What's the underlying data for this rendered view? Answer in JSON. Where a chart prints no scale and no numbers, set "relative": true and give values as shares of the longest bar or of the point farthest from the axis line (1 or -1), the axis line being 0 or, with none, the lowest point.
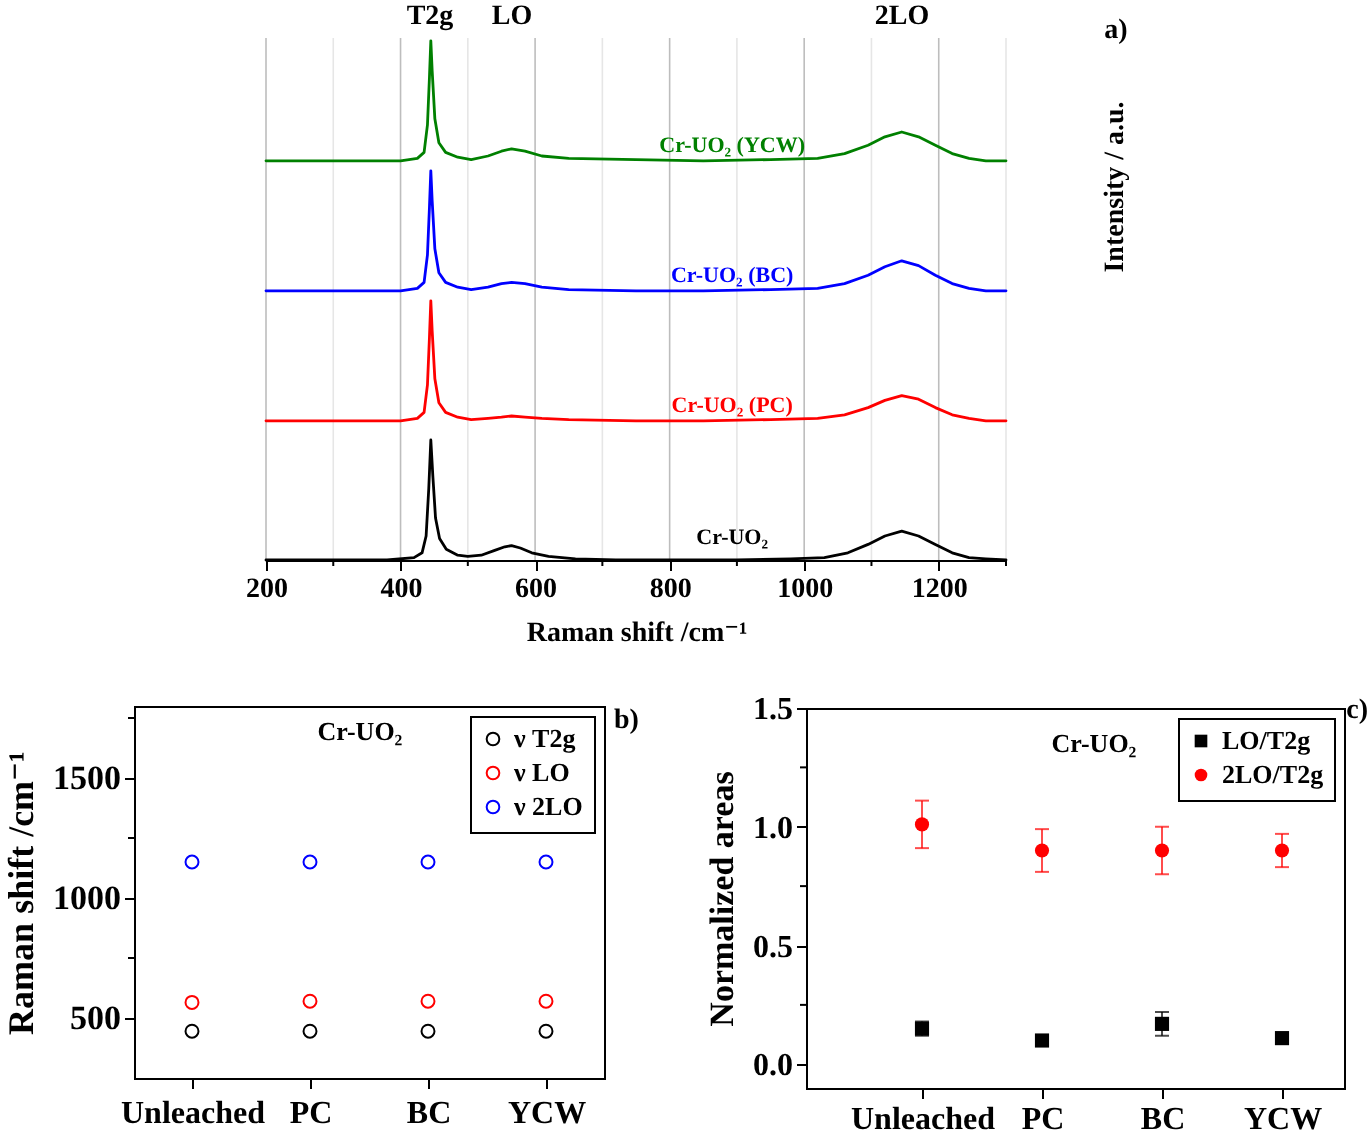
{
  "chart_data": [
    {
      "type": "line",
      "relative": true,
      "ylabel": "Intensity / a.u.",
      "xlim": [
        200,
        1300
      ],
      "xticks": [
        200,
        {
          "value": 300,
          "label": null
        },
        400,
        {
          "value": 500,
          "label": null
        },
        600,
        {
          "value": 700,
          "label": null
        },
        800,
        {
          "value": 900,
          "label": null
        },
        1000,
        {
          "value": 1100,
          "label": null
        },
        1200,
        {
          "value": 1300,
          "label": null
        }
      ],
      "grid": "x",
      "tick_labels": false,
      "annotations": [
        "T2g",
        "LO",
        "2LO",
        "a)"
      ],
      "series": [
        {
          "name": "Cr-UO₂ (YCW)",
          "color": "#008000",
          "x": [
            200,
            300,
            400,
            425,
            435,
            440,
            443,
            445,
            447,
            451,
            457,
            467,
            485,
            505,
            530,
            550,
            565,
            585,
            610,
            650,
            750,
            850,
            950,
            1020,
            1060,
            1095,
            1120,
            1145,
            1170,
            1195,
            1220,
            1245,
            1270,
            1300
          ],
          "values": [
            0,
            0,
            0,
            0.02,
            0.07,
            0.3,
            0.7,
            1,
            0.75,
            0.35,
            0.15,
            0.07,
            0.03,
            0.01,
            0.04,
            0.08,
            0.1,
            0.08,
            0.04,
            0.02,
            0.01,
            0,
            0.01,
            0.02,
            0.06,
            0.13,
            0.2,
            0.24,
            0.2,
            0.13,
            0.06,
            0.02,
            0,
            0
          ]
        }
      ]
    },
    {
      "type": "line",
      "relative": true,
      "xlim": [
        200,
        1300
      ],
      "xticks": [
        200,
        {
          "value": 300,
          "label": null
        },
        400,
        {
          "value": 500,
          "label": null
        },
        600,
        {
          "value": 700,
          "label": null
        },
        800,
        {
          "value": 900,
          "label": null
        },
        1000,
        {
          "value": 1100,
          "label": null
        },
        1200,
        {
          "value": 1300,
          "label": null
        }
      ],
      "grid": "x",
      "tick_labels": false,
      "series": [
        {
          "name": "Cr-UO₂ (BC)",
          "color": "#0000ff",
          "x": [
            200,
            300,
            400,
            425,
            435,
            440,
            443,
            445,
            447,
            451,
            457,
            467,
            485,
            505,
            530,
            550,
            565,
            585,
            610,
            650,
            750,
            850,
            950,
            1020,
            1060,
            1095,
            1120,
            1145,
            1170,
            1195,
            1220,
            1245,
            1270,
            1300
          ],
          "values": [
            0,
            0,
            0,
            0.02,
            0.07,
            0.3,
            0.7,
            1,
            0.75,
            0.35,
            0.15,
            0.07,
            0.03,
            0.01,
            0.03,
            0.06,
            0.07,
            0.06,
            0.03,
            0.01,
            0,
            0,
            0.01,
            0.02,
            0.06,
            0.13,
            0.2,
            0.25,
            0.21,
            0.13,
            0.06,
            0.02,
            0,
            0
          ]
        }
      ]
    },
    {
      "type": "line",
      "relative": true,
      "xlim": [
        200,
        1300
      ],
      "xticks": [
        200,
        {
          "value": 300,
          "label": null
        },
        400,
        {
          "value": 500,
          "label": null
        },
        600,
        {
          "value": 700,
          "label": null
        },
        800,
        {
          "value": 900,
          "label": null
        },
        1000,
        {
          "value": 1100,
          "label": null
        },
        1200,
        {
          "value": 1300,
          "label": null
        }
      ],
      "grid": "x",
      "tick_labels": false,
      "series": [
        {
          "name": "Cr-UO₂ (PC)",
          "color": "#ff0000",
          "x": [
            200,
            300,
            400,
            425,
            435,
            440,
            443,
            445,
            447,
            451,
            457,
            467,
            485,
            505,
            530,
            550,
            565,
            585,
            610,
            650,
            750,
            850,
            950,
            1020,
            1060,
            1095,
            1120,
            1145,
            1170,
            1195,
            1220,
            1245,
            1270,
            1300
          ],
          "values": [
            0,
            0,
            0,
            0.02,
            0.07,
            0.3,
            0.7,
            1,
            0.75,
            0.35,
            0.15,
            0.07,
            0.03,
            0.01,
            0.02,
            0.03,
            0.04,
            0.03,
            0.02,
            0.01,
            0,
            0,
            0.01,
            0.02,
            0.05,
            0.11,
            0.17,
            0.21,
            0.18,
            0.11,
            0.05,
            0.02,
            0,
            0
          ]
        }
      ]
    },
    {
      "type": "line",
      "relative": true,
      "xlabel": "Raman shift /cm⁻¹",
      "xlim": [
        200,
        1300
      ],
      "xticks": [
        200,
        {
          "value": 300,
          "label": null
        },
        400,
        {
          "value": 500,
          "label": null
        },
        600,
        {
          "value": 700,
          "label": null
        },
        800,
        {
          "value": 900,
          "label": null
        },
        1000,
        {
          "value": 1100,
          "label": null
        },
        1200,
        {
          "value": 1300,
          "label": null
        }
      ],
      "grid": "x",
      "tick_labels": "x",
      "series": [
        {
          "name": "Cr-UO₂",
          "color": "#000000",
          "x": [
            200,
            300,
            380,
            420,
            432,
            438,
            442,
            445,
            448,
            452,
            458,
            468,
            485,
            500,
            520,
            540,
            555,
            565,
            578,
            595,
            620,
            660,
            720,
            800,
            900,
            980,
            1030,
            1065,
            1095,
            1120,
            1145,
            1170,
            1195,
            1220,
            1245,
            1270,
            1300
          ],
          "values": [
            0,
            0,
            0,
            0.02,
            0.06,
            0.2,
            0.6,
            1,
            0.7,
            0.35,
            0.18,
            0.09,
            0.04,
            0.03,
            0.04,
            0.08,
            0.11,
            0.12,
            0.1,
            0.06,
            0.03,
            0.01,
            0,
            0,
            0,
            0.01,
            0.02,
            0.06,
            0.13,
            0.2,
            0.24,
            0.2,
            0.13,
            0.06,
            0.02,
            0.01,
            0
          ]
        }
      ]
    },
    {
      "type": "scatter",
      "categories": [
        "Unleached",
        "PC",
        "BC",
        "YCW"
      ],
      "ylabel": "Raman shift /cm⁻¹",
      "ylim": [
        250,
        1800
      ],
      "yticks": [
        500,
        {
          "value": 750,
          "label": null
        },
        1000,
        {
          "value": 1250,
          "label": null
        },
        1500,
        {
          "value": 1750,
          "label": null
        }
      ],
      "marker": "circle",
      "legend": "top right",
      "annotations": [
        "Cr-UO₂",
        "b)"
      ],
      "series": [
        {
          "name": "ν T2g",
          "color": "#000000",
          "values": [
            445,
            445,
            445,
            445
          ]
        },
        {
          "name": "ν LO",
          "color": "#ff0000",
          "values": [
            565,
            570,
            570,
            570
          ]
        },
        {
          "name": "ν 2LO",
          "color": "#0000ff",
          "values": [
            1150,
            1150,
            1150,
            1150
          ]
        }
      ]
    },
    {
      "type": "scatter",
      "categories": [
        "Unleached",
        "PC",
        "BC",
        "YCW"
      ],
      "ylabel": "Normalized areas",
      "ylim": [
        -0.1,
        1.5
      ],
      "yticks": [
        {
          "value": 0,
          "label": "0.0"
        },
        {
          "value": 0.25,
          "label": null
        },
        {
          "value": 0.5,
          "label": "0.5"
        },
        {
          "value": 0.75,
          "label": null
        },
        {
          "value": 1,
          "label": "1.0"
        },
        {
          "value": 1.25,
          "label": null
        },
        {
          "value": 1.5,
          "label": "1.5"
        }
      ],
      "legend": "top right",
      "annotations": [
        "Cr-UO₂",
        "c)"
      ],
      "series": [
        {
          "name": "LO/T2g",
          "color": "#000000",
          "marker": "square",
          "values": [
            0.15,
            0.1,
            0.17,
            0.11
          ],
          "errors": [
            0.03,
            0.02,
            0.05,
            0.01
          ]
        },
        {
          "name": "2LO/T2g",
          "color": "#ff0000",
          "marker": "circle",
          "values": [
            1.01,
            0.9,
            0.9,
            0.9
          ],
          "errors": [
            0.1,
            0.09,
            0.1,
            0.07
          ]
        }
      ]
    }
  ]
}
